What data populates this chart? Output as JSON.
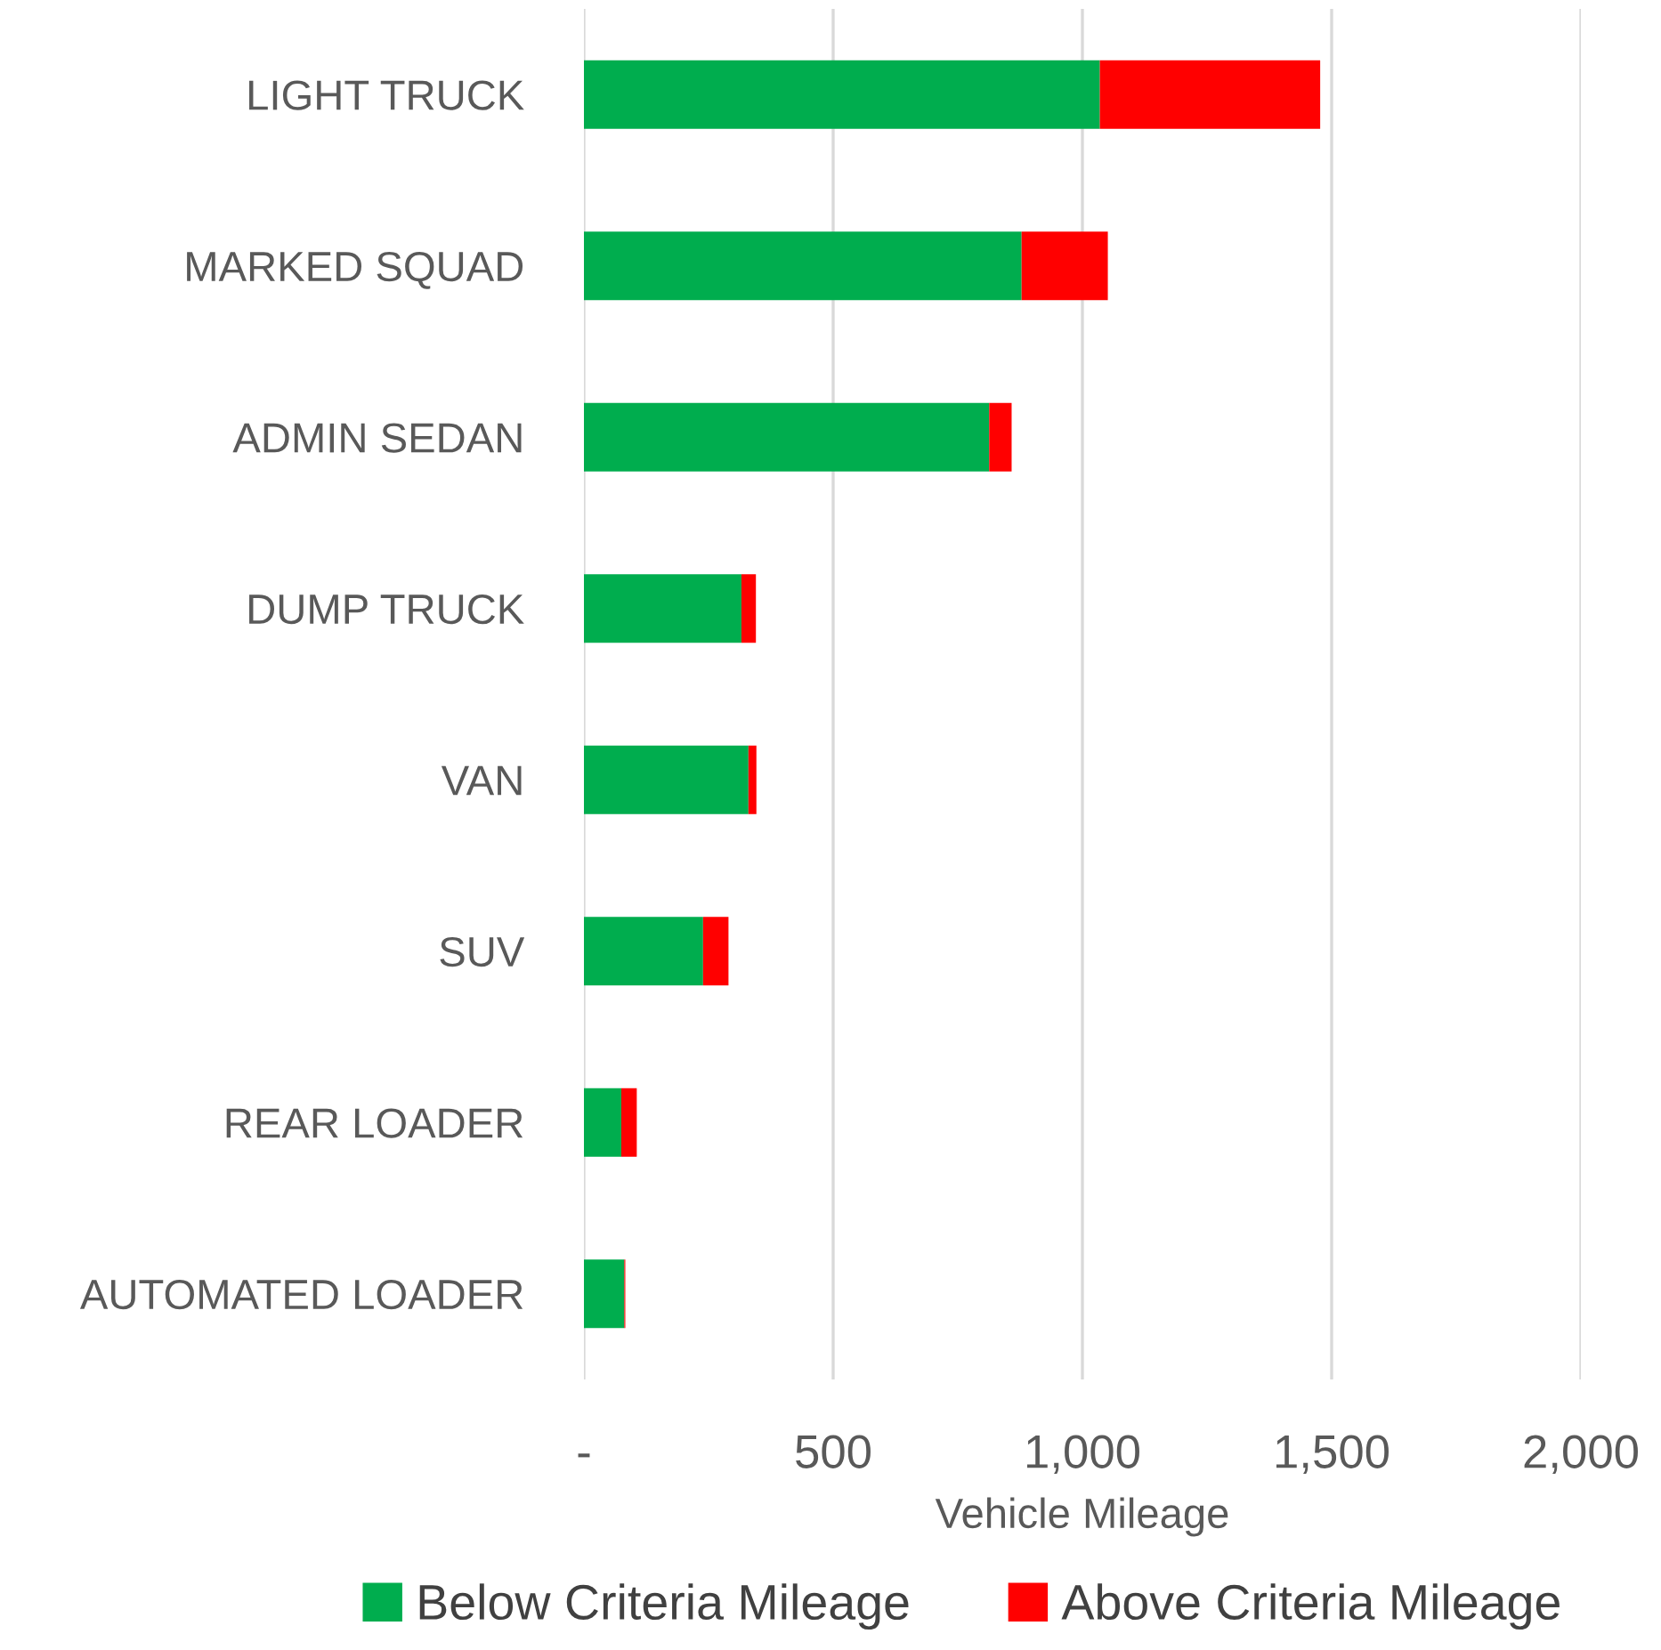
{
  "chart_data": {
    "type": "bar",
    "orientation": "horizontal",
    "stacked": true,
    "categories": [
      "LIGHT TRUCK",
      "MARKED SQUAD",
      "ADMIN SEDAN",
      "DUMP TRUCK",
      "VAN",
      "SUV",
      "REAR LOADER",
      "AUTOMATED LOADER"
    ],
    "series": [
      {
        "name": "Below Criteria Mileage",
        "color": "#00ad4e",
        "values": [
          1035,
          878,
          813,
          316,
          330,
          239,
          75,
          81
        ]
      },
      {
        "name": "Above Criteria Mileage",
        "color": "#ff0000",
        "values": [
          442,
          173,
          45,
          29,
          16,
          51,
          31,
          2
        ]
      }
    ],
    "xlabel": "Vehicle Mileage",
    "xlim": [
      0,
      2000
    ],
    "xticks": [
      {
        "value": 0,
        "label": "-"
      },
      {
        "value": 500,
        "label": "500"
      },
      {
        "value": 1000,
        "label": "1,000"
      },
      {
        "value": 1500,
        "label": "1,500"
      },
      {
        "value": 2000,
        "label": "2,000"
      }
    ],
    "grid": "x",
    "legend": "bottom"
  }
}
